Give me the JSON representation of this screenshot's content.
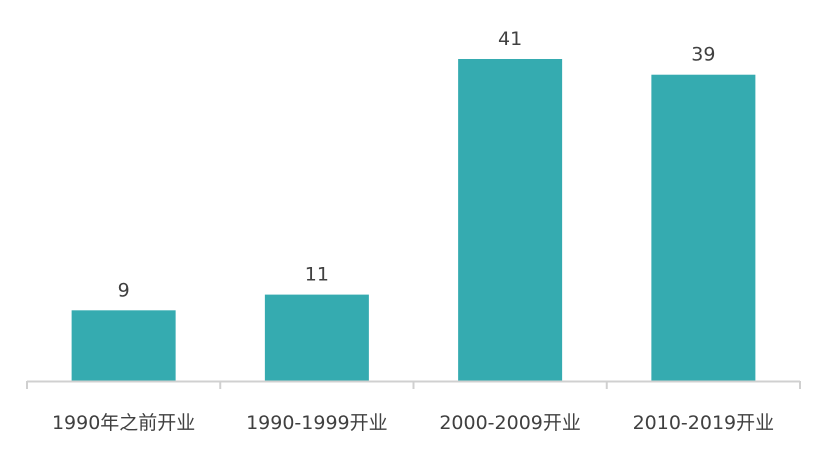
{
  "chart_data": {
    "type": "bar",
    "title": "",
    "xlabel": "",
    "ylabel": "",
    "categories": [
      "1990年之前开业",
      "1990-1999开业",
      "2000-2009开业",
      "2010-2019开业"
    ],
    "values": [
      9,
      11,
      41,
      39
    ],
    "ylim": [
      0,
      41
    ],
    "grid": false,
    "legend": "none",
    "data_labels": true,
    "colors": {
      "bar": "#35abb0",
      "axis": "#d0d0d0",
      "text": "#404040"
    }
  }
}
